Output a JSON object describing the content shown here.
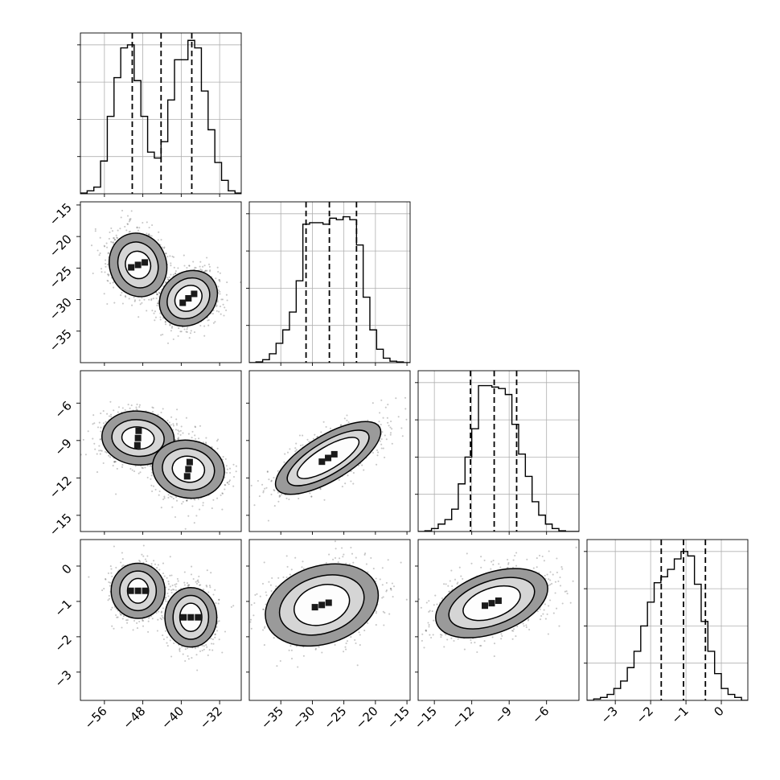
{
  "chart_data": {
    "type": "corner",
    "parameters": [
      {
        "index": 0,
        "range": [
          -61,
          -27.5
        ],
        "ticks": [
          -56,
          -48,
          -40,
          -32
        ],
        "tick_labels": [
          "−56",
          "−48",
          "−40",
          "−32"
        ],
        "quantiles": [
          -50.2,
          -44.2,
          -37.8
        ],
        "histogram": {
          "bin_edges": [
            -61.0,
            -59.6,
            -58.2,
            -56.8,
            -55.4,
            -54.0,
            -52.6,
            -51.2,
            -49.8,
            -48.4,
            -47.0,
            -45.6,
            -44.2,
            -42.8,
            -41.4,
            -40.0,
            -38.6,
            -37.2,
            -35.8,
            -34.4,
            -33.0,
            -31.6,
            -30.2,
            -28.8,
            -27.5
          ],
          "counts": [
            0.005,
            0.02,
            0.045,
            0.22,
            0.52,
            0.78,
            0.98,
            1.0,
            0.76,
            0.52,
            0.28,
            0.24,
            0.35,
            0.63,
            0.9,
            0.9,
            1.03,
            0.98,
            0.69,
            0.43,
            0.21,
            0.09,
            0.02,
            0.005
          ]
        }
      },
      {
        "index": 1,
        "range": [
          -40,
          -14.5
        ],
        "ticks": [
          -35,
          -30,
          -25,
          -20,
          -15
        ],
        "tick_labels": [
          "−35",
          "−30",
          "−25",
          "−20",
          "−15"
        ],
        "quantiles": [
          -31.0,
          -27.3,
          -23.0
        ],
        "histogram": {
          "bin_edges": [
            -40.0,
            -38.94,
            -37.88,
            -36.81,
            -35.75,
            -34.69,
            -33.63,
            -32.56,
            -31.5,
            -30.44,
            -29.38,
            -28.31,
            -27.25,
            -26.19,
            -25.13,
            -24.06,
            -23.0,
            -21.94,
            -20.88,
            -19.81,
            -18.75,
            -17.69,
            -16.63,
            -15.56,
            -14.5
          ],
          "counts": [
            0.0,
            0.005,
            0.02,
            0.06,
            0.13,
            0.22,
            0.34,
            0.55,
            0.93,
            0.94,
            0.94,
            0.93,
            0.97,
            0.96,
            0.98,
            0.96,
            0.79,
            0.44,
            0.22,
            0.09,
            0.03,
            0.01,
            0.005,
            0.0
          ]
        }
      },
      {
        "index": 2,
        "range": [
          -16.3,
          -3.4
        ],
        "ticks": [
          -15,
          -12,
          -9,
          -6
        ],
        "tick_labels": [
          "−15",
          "−12",
          "−9",
          "−6"
        ],
        "quantiles": [
          -12.1,
          -10.2,
          -8.4
        ],
        "histogram": {
          "bin_edges": [
            -16.3,
            -15.76,
            -15.23,
            -14.69,
            -14.15,
            -13.61,
            -13.08,
            -12.54,
            -12.0,
            -11.46,
            -10.93,
            -10.39,
            -9.85,
            -9.31,
            -8.78,
            -8.24,
            -7.7,
            -7.16,
            -6.63,
            -6.09,
            -5.55,
            -5.01,
            -4.48,
            -3.94,
            -3.4
          ],
          "counts": [
            0.0,
            0.005,
            0.02,
            0.05,
            0.08,
            0.15,
            0.32,
            0.5,
            0.69,
            0.98,
            0.98,
            0.97,
            0.96,
            0.92,
            0.72,
            0.52,
            0.37,
            0.2,
            0.11,
            0.05,
            0.02,
            0.005,
            0.0,
            0.0
          ]
        }
      },
      {
        "index": 3,
        "range": [
          -3.8,
          0.75
        ],
        "ticks": [
          -3,
          -2,
          -1,
          0
        ],
        "tick_labels": [
          "−3",
          "−2",
          "−1",
          "0"
        ],
        "quantiles": [
          -1.7,
          -1.07,
          -0.45
        ],
        "histogram": {
          "bin_edges": [
            -3.8,
            -3.61,
            -3.42,
            -3.23,
            -3.04,
            -2.85,
            -2.66,
            -2.47,
            -2.28,
            -2.09,
            -1.9,
            -1.71,
            -1.52,
            -1.33,
            -1.14,
            -0.95,
            -0.76,
            -0.57,
            -0.38,
            -0.19,
            0.0,
            0.19,
            0.38,
            0.57,
            0.75
          ],
          "counts": [
            0.0,
            0.01,
            0.02,
            0.04,
            0.08,
            0.13,
            0.22,
            0.33,
            0.5,
            0.66,
            0.79,
            0.83,
            0.88,
            0.95,
            1.0,
            0.97,
            0.78,
            0.53,
            0.33,
            0.18,
            0.08,
            0.04,
            0.02,
            0.0
          ]
        }
      }
    ],
    "scatter_panels": [
      {
        "x": 0,
        "y": 1,
        "clusters": [
          {
            "center": [
              -49.0,
              -24.5
            ],
            "level_half_axes": [
              [
                2.6,
                2.2
              ],
              [
                4.1,
                3.7
              ],
              [
                5.9,
                5.1
              ]
            ],
            "level_rotation_deg": -20
          },
          {
            "center": [
              -38.5,
              -29.8
            ],
            "level_half_axes": [
              [
                3.0,
                1.9
              ],
              [
                4.7,
                3.0
              ],
              [
                6.4,
                4.1
              ]
            ],
            "level_rotation_deg": -38
          }
        ]
      },
      {
        "x": 0,
        "y": 2,
        "clusters": [
          {
            "center": [
              -49.0,
              -8.8
            ],
            "level_half_axes": [
              [
                2.3,
                1.3
              ],
              [
                3.8,
                2.1
              ],
              [
                5.6,
                2.9
              ]
            ],
            "level_rotation_deg": -85
          },
          {
            "center": [
              -38.5,
              -11.3
            ],
            "level_half_axes": [
              [
                2.7,
                1.3
              ],
              [
                4.3,
                2.1
              ],
              [
                6.0,
                2.9
              ]
            ],
            "level_rotation_deg": -80
          }
        ]
      },
      {
        "x": 1,
        "y": 2,
        "clusters": [
          {
            "center": [
              -27.5,
              -10.4
            ],
            "level_half_axes": [
              [
                5.6,
                0.9
              ],
              [
                7.4,
                1.3
              ],
              [
                9.5,
                1.8
              ]
            ],
            "level_rotation_deg": -31
          }
        ]
      },
      {
        "x": 0,
        "y": 3,
        "clusters": [
          {
            "center": [
              -49.0,
              -0.7
            ],
            "level_half_axes": [
              [
                2.2,
                0.35
              ],
              [
                3.8,
                0.56
              ],
              [
                5.6,
                0.78
              ]
            ],
            "level_rotation_deg": 0
          },
          {
            "center": [
              -38.0,
              -1.45
            ],
            "level_half_axes": [
              [
                2.3,
                0.4
              ],
              [
                3.7,
                0.62
              ],
              [
                5.4,
                0.84
              ]
            ],
            "level_rotation_deg": 0
          }
        ]
      },
      {
        "x": 1,
        "y": 3,
        "clusters": [
          {
            "center": [
              -28.5,
              -1.1
            ],
            "level_half_axes": [
              [
                4.5,
                0.55
              ],
              [
                6.9,
                0.8
              ],
              [
                9.2,
                1.1
              ]
            ],
            "level_rotation_deg": -18
          }
        ]
      },
      {
        "x": 2,
        "y": 3,
        "clusters": [
          {
            "center": [
              -10.4,
              -1.05
            ],
            "level_half_axes": [
              [
                2.4,
                0.42
              ],
              [
                3.6,
                0.62
              ],
              [
                4.7,
                0.85
              ]
            ],
            "level_rotation_deg": -20
          }
        ]
      }
    ]
  }
}
